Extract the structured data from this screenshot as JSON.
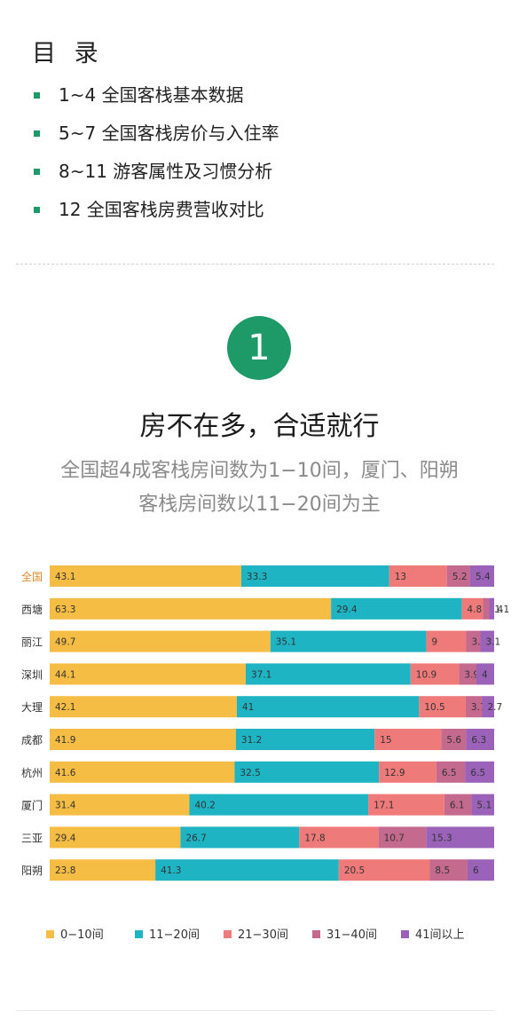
{
  "toc": {
    "title": "目 录",
    "items": [
      "1~4 全国客栈基本数据",
      "5~7 全国客栈房价与入住率",
      "8~11 游客属性及习惯分析",
      "12 全国客栈房费营收对比"
    ]
  },
  "section": {
    "number": "1",
    "title": "房不在多，合适就行",
    "subtitle_line1": "全国超4成客栈房间数为1−10间，厦门、阳朔",
    "subtitle_line2": "客栈房间数以11−20间为主"
  },
  "chart_data": {
    "type": "bar",
    "orientation": "horizontal",
    "stacked": true,
    "categories": [
      "全国",
      "西塘",
      "丽江",
      "深圳",
      "大理",
      "成都",
      "杭州",
      "厦门",
      "三亚",
      "阳朔"
    ],
    "highlight_category": "全国",
    "series": [
      {
        "name": "0−10间",
        "color": "#f6bd45",
        "values": [
          43.1,
          63.3,
          49.7,
          44.1,
          42.1,
          41.9,
          41.6,
          31.4,
          29.4,
          23.8
        ]
      },
      {
        "name": "11−20间",
        "color": "#1eb4c4",
        "values": [
          33.3,
          29.4,
          35.1,
          37.1,
          41,
          31.2,
          32.5,
          40.2,
          26.7,
          41.3
        ]
      },
      {
        "name": "21−30间",
        "color": "#ef7a7a",
        "values": [
          13,
          4.8,
          9,
          10.9,
          10.5,
          15,
          12.9,
          17.1,
          17.8,
          20.5
        ]
      },
      {
        "name": "31−40间",
        "color": "#c46a8e",
        "values": [
          5.2,
          1.4,
          3.2,
          3.9,
          3.7,
          5.6,
          6.5,
          6.1,
          10.7,
          8.5
        ]
      },
      {
        "name": "41间以上",
        "color": "#9a63b9",
        "values": [
          5.4,
          1.1,
          3.1,
          4,
          2.7,
          6.3,
          6.5,
          5.1,
          15.3,
          6
        ]
      }
    ],
    "legend_position": "bottom",
    "grid": false,
    "colors": {
      "highlight_label": "#e08a2e",
      "label": "#333333",
      "value_label": "#333333"
    }
  }
}
